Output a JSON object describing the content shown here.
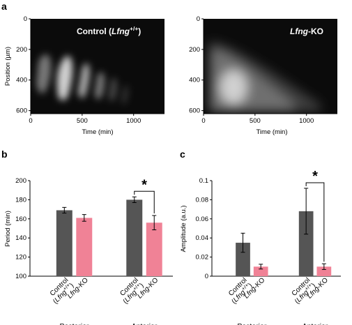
{
  "panels": [
    {
      "label": "a"
    },
    {
      "label": "b"
    },
    {
      "label": "c"
    }
  ],
  "colors": {
    "control": "#555555",
    "ko": "#f08296"
  },
  "chart_data": [
    {
      "type": "heatmap",
      "panel": "a",
      "title_pre": "Control (",
      "title_italic": "Lfng",
      "title_sup": "+/+",
      "title_post": ")",
      "xlabel": "Time (min)",
      "ylabel": "Position (µm)",
      "xticks": [
        "0",
        "500",
        "1000"
      ],
      "yticks": [
        "0",
        "200",
        "400",
        "600"
      ],
      "xlim": [
        0,
        1300
      ],
      "ylim": [
        620,
        0
      ]
    },
    {
      "type": "heatmap",
      "panel": "a",
      "title_italic": "Lfng",
      "title_post": "-KO",
      "xlabel": "Time (min)",
      "xticks": [
        "0",
        "500",
        "1000"
      ],
      "yticks": [
        "0",
        "200",
        "400",
        "600"
      ],
      "xlim": [
        0,
        1300
      ],
      "ylim": [
        620,
        0
      ]
    },
    {
      "type": "bar",
      "panel": "b",
      "ylabel": "Period (min)",
      "ylim": [
        100,
        200
      ],
      "yticks": [
        "100",
        "120",
        "140",
        "160",
        "180",
        "200"
      ],
      "groups": [
        "Posterior",
        "Anterior"
      ],
      "categories": [
        {
          "pre": "Control",
          "italic": "Lfng",
          "sup": "+/+",
          "line2": true
        },
        {
          "italic": "Lfng",
          "post": "-KO"
        }
      ],
      "series": [
        {
          "values": [
            169,
            180
          ],
          "errors": [
            3,
            3
          ]
        },
        {
          "values": [
            161,
            156
          ],
          "errors": [
            3.5,
            7.5
          ]
        }
      ],
      "significance": "*"
    },
    {
      "type": "bar",
      "panel": "c",
      "ylabel": "Amplitude (a.u.)",
      "ylim": [
        0,
        0.1
      ],
      "yticks": [
        "0",
        "0.02",
        "0.04",
        "0.06",
        "0.08",
        "0.1"
      ],
      "groups": [
        "Posterior",
        "Anterior"
      ],
      "categories": [
        {
          "pre": "Control",
          "italic": "Lfng",
          "sup": "+/+",
          "line2": true
        },
        {
          "italic": "Lfng",
          "post": "-KO"
        }
      ],
      "series": [
        {
          "values": [
            0.035,
            0.068
          ],
          "errors": [
            0.01,
            0.024
          ]
        },
        {
          "values": [
            0.01,
            0.01
          ],
          "errors": [
            0.0025,
            0.003
          ]
        }
      ],
      "significance": "*"
    }
  ]
}
